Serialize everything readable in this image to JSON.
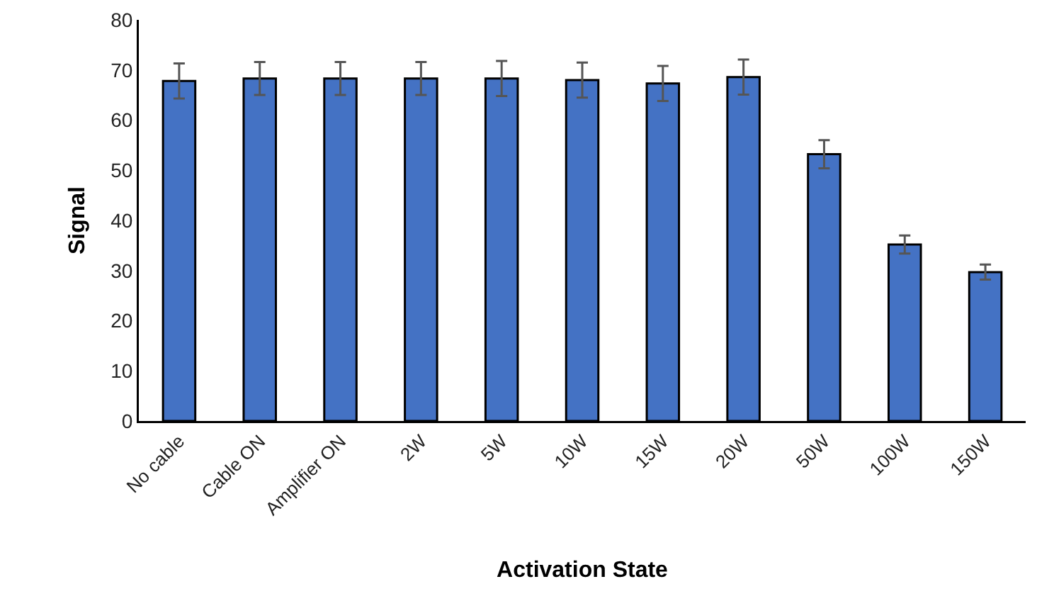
{
  "chart_data": {
    "type": "bar",
    "xlabel": "Activation State",
    "ylabel": "Signal",
    "categories": [
      "No cable",
      "Cable ON",
      "Amplifier ON",
      "2W",
      "5W",
      "10W",
      "15W",
      "20W",
      "50W",
      "100W",
      "150W"
    ],
    "values": [
      67.8,
      68.3,
      68.3,
      68.3,
      68.3,
      68.0,
      67.3,
      68.6,
      53.2,
      35.2,
      29.7
    ],
    "errors": [
      3.5,
      3.3,
      3.3,
      3.3,
      3.5,
      3.5,
      3.5,
      3.5,
      2.8,
      1.8,
      1.5
    ],
    "color": "#4472c4",
    "ylim": [
      0,
      80
    ],
    "yticks": [
      0,
      10,
      20,
      30,
      40,
      50,
      60,
      70,
      80
    ],
    "grid": false,
    "legend": false
  }
}
